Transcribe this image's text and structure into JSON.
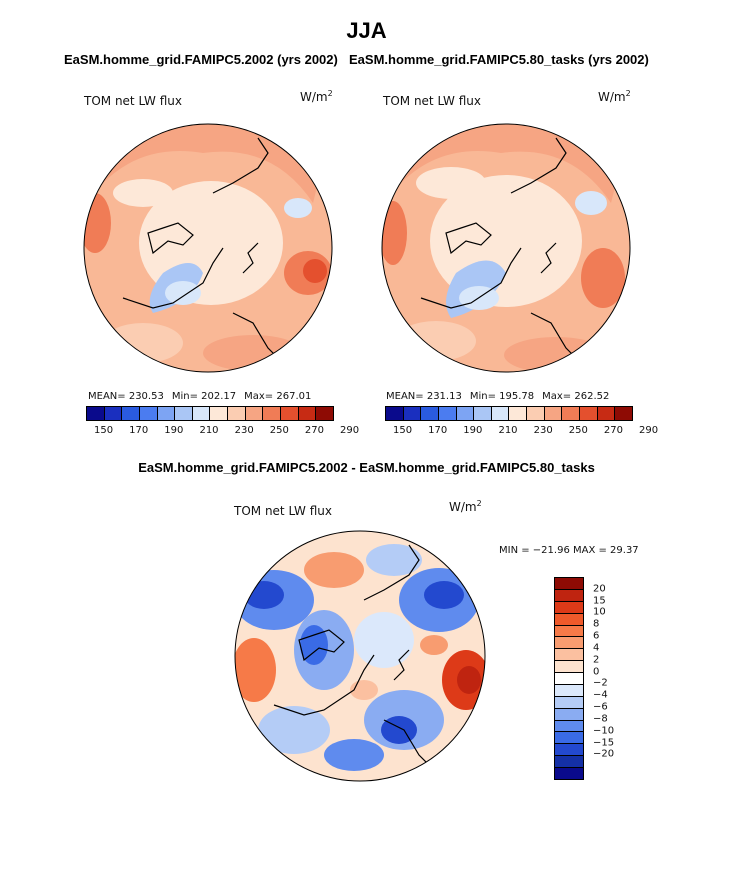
{
  "figure": {
    "title": "JJA",
    "left_title": "EaSM.homme_grid.FAMIPC5.2002 (yrs 2002)",
    "right_title": "EaSM.homme_grid.FAMIPC5.80_tasks (yrs 2002)",
    "diff_title": "EaSM.homme_grid.FAMIPC5.2002 - EaSM.homme_grid.FAMIPC5.80_tasks"
  },
  "left_panel": {
    "label": "TOM net LW flux",
    "units_base": "W/m",
    "units_exp": "2",
    "mean_text": "MEAN= 230.53",
    "min_text": "Min= 202.17",
    "max_text": "Max= 267.01"
  },
  "right_panel": {
    "label": "TOM net LW flux",
    "units_base": "W/m",
    "units_exp": "2",
    "mean_text": "MEAN= 231.13",
    "min_text": "Min= 195.78",
    "max_text": "Max= 262.52"
  },
  "diff_panel": {
    "label": "TOM net LW flux",
    "units_base": "W/m",
    "units_exp": "2",
    "minmax_text": "MIN = −21.96 MAX =  29.37"
  },
  "abs_colorbar": {
    "colors": [
      "#0a0a8c",
      "#1a2fbf",
      "#2a5be0",
      "#4b7cf0",
      "#7da4f3",
      "#aac6f5",
      "#d8e7fa",
      "#fde8d8",
      "#fbcdb2",
      "#f6a583",
      "#f07c56",
      "#e4502e",
      "#c72b14",
      "#8e0b04"
    ],
    "tick_labels": [
      "150",
      "170",
      "190",
      "210",
      "230",
      "250",
      "270",
      "290"
    ]
  },
  "diff_colorbar": {
    "colors": [
      "#8e0b04",
      "#bf2410",
      "#dd3a18",
      "#ef5a2b",
      "#f67a48",
      "#f89c70",
      "#fbc0a0",
      "#fde3cf",
      "#ffffff",
      "#dbe8fb",
      "#b4ccf6",
      "#8aacf2",
      "#5f8bee",
      "#3a6be6",
      "#2349cf",
      "#1430a6",
      "#0a0a8c"
    ],
    "tick_labels": [
      "20",
      "15",
      "10",
      "8",
      "6",
      "4",
      "2",
      "0",
      "−2",
      "−4",
      "−6",
      "−8",
      "−10",
      "−15",
      "−20"
    ]
  }
}
